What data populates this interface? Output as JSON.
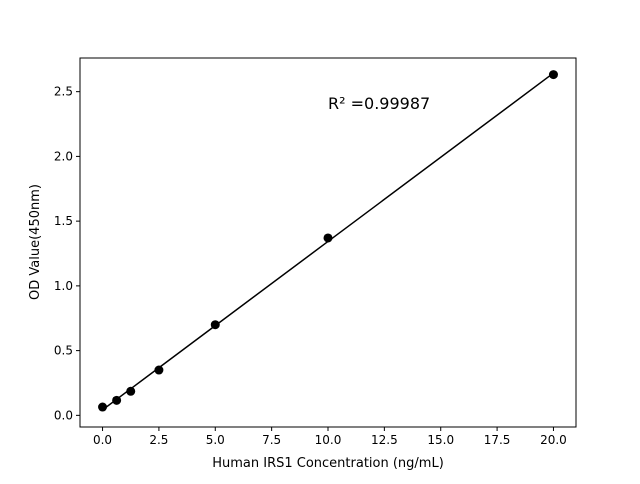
{
  "chart_data": {
    "type": "scatter",
    "title": "",
    "xlabel": "Human IRS1 Concentration (ng/mL)",
    "ylabel": "OD Value(450nm)",
    "xlim": [
      -1.0,
      21.0
    ],
    "ylim": [
      -0.09,
      2.76
    ],
    "xticks": [
      0.0,
      2.5,
      5.0,
      7.5,
      10.0,
      12.5,
      15.0,
      17.5,
      20.0
    ],
    "xtick_labels": [
      "0.0",
      "2.5",
      "5.0",
      "7.5",
      "10.0",
      "12.5",
      "15.0",
      "17.5",
      "20.0"
    ],
    "yticks": [
      0.0,
      0.5,
      1.0,
      1.5,
      2.0,
      2.5
    ],
    "ytick_labels": [
      "0.0",
      "0.5",
      "1.0",
      "1.5",
      "2.0",
      "2.5"
    ],
    "grid": false,
    "points": {
      "x": [
        0,
        0.625,
        1.25,
        2.5,
        5,
        10,
        20
      ],
      "y": [
        0.064,
        0.116,
        0.186,
        0.35,
        0.7,
        1.37,
        2.632
      ]
    },
    "fit": "linear",
    "annotation": "R² =0.99987",
    "color": "#000000"
  }
}
